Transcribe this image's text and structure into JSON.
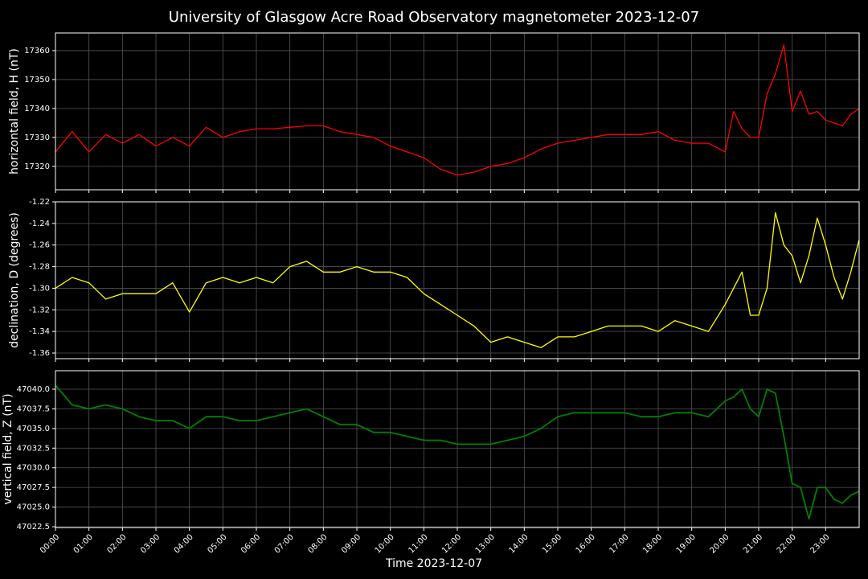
{
  "chart_data": [
    {
      "type": "line",
      "title": "University of Glasgow Acre Road Observatory magnetometer 2023-12-07",
      "ylabel": "horizontal field, H (nT)",
      "color": "#ff0000",
      "grid": true,
      "x": [
        0,
        0.5,
        1,
        1.5,
        2,
        2.5,
        3,
        3.5,
        4,
        4.5,
        5,
        5.5,
        6,
        6.5,
        7,
        7.5,
        8,
        8.5,
        9,
        9.5,
        10,
        10.5,
        11,
        11.5,
        12,
        12.5,
        13,
        13.5,
        14,
        14.5,
        15,
        15.5,
        16,
        16.5,
        17,
        17.5,
        18,
        18.5,
        19,
        19.5,
        20,
        20.25,
        20.5,
        20.75,
        21,
        21.25,
        21.5,
        21.75,
        22,
        22.25,
        22.5,
        22.75,
        23,
        23.25,
        23.5,
        23.75,
        24
      ],
      "values": [
        17325,
        17332,
        17325,
        17331,
        17328,
        17331,
        17327,
        17330,
        17327,
        17333.5,
        17330,
        17332,
        17333,
        17333,
        17333.5,
        17334,
        17334,
        17332,
        17331,
        17330,
        17327,
        17325,
        17323,
        17319,
        17317,
        17318,
        17320,
        17321,
        17323,
        17326,
        17328,
        17329,
        17330,
        17331,
        17331,
        17331,
        17332,
        17329,
        17328,
        17328,
        17325,
        17339,
        17333,
        17330,
        17330,
        17345,
        17352,
        17362,
        17339,
        17346,
        17338,
        17339,
        17336,
        17335,
        17334,
        17338,
        17340
      ],
      "xlim": [
        0,
        24
      ],
      "ylim": [
        17311.9,
        17366.1
      ],
      "yticks": [
        17320,
        17330,
        17340,
        17350,
        17360
      ]
    },
    {
      "type": "line",
      "ylabel": "declination, D (degrees)",
      "color": "#ffff00",
      "grid": true,
      "x": [
        0,
        0.5,
        1,
        1.5,
        2,
        2.5,
        3,
        3.5,
        4,
        4.5,
        5,
        5.5,
        6,
        6.5,
        7,
        7.5,
        8,
        8.5,
        9,
        9.5,
        10,
        10.5,
        11,
        11.5,
        12,
        12.5,
        13,
        13.5,
        14,
        14.5,
        15,
        15.5,
        16,
        16.5,
        17,
        17.5,
        18,
        18.5,
        19,
        19.5,
        20,
        20.25,
        20.5,
        20.75,
        21,
        21.25,
        21.5,
        21.75,
        22,
        22.25,
        22.5,
        22.75,
        23,
        23.25,
        23.5,
        23.75,
        24
      ],
      "values": [
        -1.3,
        -1.29,
        -1.295,
        -1.31,
        -1.305,
        -1.305,
        -1.305,
        -1.295,
        -1.322,
        -1.295,
        -1.29,
        -1.295,
        -1.29,
        -1.295,
        -1.28,
        -1.275,
        -1.285,
        -1.285,
        -1.28,
        -1.285,
        -1.285,
        -1.29,
        -1.305,
        -1.315,
        -1.325,
        -1.335,
        -1.35,
        -1.345,
        -1.35,
        -1.355,
        -1.345,
        -1.345,
        -1.34,
        -1.335,
        -1.335,
        -1.335,
        -1.34,
        -1.33,
        -1.335,
        -1.34,
        -1.315,
        -1.3,
        -1.285,
        -1.325,
        -1.325,
        -1.3,
        -1.23,
        -1.26,
        -1.27,
        -1.295,
        -1.27,
        -1.235,
        -1.26,
        -1.29,
        -1.31,
        -1.285,
        -1.255
      ],
      "xlim": [
        0,
        24
      ],
      "ylim": [
        -1.3652,
        -1.22
      ],
      "yticks": [
        -1.36,
        -1.34,
        -1.32,
        {
          "value": -1.3,
          "label": "-1.30"
        },
        -1.28,
        -1.26,
        -1.24,
        -1.22
      ]
    },
    {
      "type": "line",
      "ylabel": "vertical field, Z (nT)",
      "xlabel": "Time 2023-12-07",
      "color": "#008000",
      "grid": true,
      "x": [
        0,
        0.5,
        1,
        1.5,
        2,
        2.5,
        3,
        3.5,
        4,
        4.5,
        5,
        5.5,
        6,
        6.5,
        7,
        7.5,
        8,
        8.5,
        9,
        9.5,
        10,
        10.5,
        11,
        11.5,
        12,
        12.5,
        13,
        13.5,
        14,
        14.5,
        15,
        15.5,
        16,
        16.5,
        17,
        17.5,
        18,
        18.5,
        19,
        19.5,
        20,
        20.25,
        20.5,
        20.75,
        21,
        21.25,
        21.5,
        21.75,
        22,
        22.25,
        22.5,
        22.75,
        23,
        23.25,
        23.5,
        23.75,
        24
      ],
      "values": [
        47040.5,
        47038,
        47037.5,
        47038,
        47037.5,
        47036.5,
        47036,
        47036,
        47035,
        47036.5,
        47036.5,
        47036,
        47036,
        47036.5,
        47037,
        47037.5,
        47036.5,
        47035.5,
        47035.5,
        47034.5,
        47034.5,
        47034,
        47033.5,
        47033.5,
        47033,
        47033,
        47033,
        47033.5,
        47034,
        47035,
        47036.5,
        47037,
        47037,
        47037,
        47037,
        47036.5,
        47036.5,
        47037,
        47037,
        47036.5,
        47038.5,
        47039,
        47040,
        47037.5,
        47036.5,
        47040,
        47039.5,
        47034,
        47028,
        47027.5,
        47023.5,
        47027.5,
        47027.5,
        47026,
        47025.5,
        47026.5,
        47027
      ],
      "xlim": [
        0,
        24
      ],
      "ylim": [
        47022.4,
        47042.35
      ],
      "yticks": [
        47022.5,
        {
          "value": 47025,
          "label": "47025.0"
        },
        47027.5,
        {
          "value": 47030,
          "label": "47030.0"
        },
        47032.5,
        {
          "value": 47035,
          "label": "47035.0"
        },
        47037.5,
        {
          "value": 47040,
          "label": "47040.0"
        }
      ],
      "xticks": [
        {
          "value": 0,
          "label": "00:00"
        },
        {
          "value": 1,
          "label": "01:00"
        },
        {
          "value": 2,
          "label": "02:00"
        },
        {
          "value": 3,
          "label": "03:00"
        },
        {
          "value": 4,
          "label": "04:00"
        },
        {
          "value": 5,
          "label": "05:00"
        },
        {
          "value": 6,
          "label": "06:00"
        },
        {
          "value": 7,
          "label": "07:00"
        },
        {
          "value": 8,
          "label": "08:00"
        },
        {
          "value": 9,
          "label": "09:00"
        },
        {
          "value": 10,
          "label": "10:00"
        },
        {
          "value": 11,
          "label": "11:00"
        },
        {
          "value": 12,
          "label": "12:00"
        },
        {
          "value": 13,
          "label": "13:00"
        },
        {
          "value": 14,
          "label": "14:00"
        },
        {
          "value": 15,
          "label": "15:00"
        },
        {
          "value": 16,
          "label": "16:00"
        },
        {
          "value": 17,
          "label": "17:00"
        },
        {
          "value": 18,
          "label": "18:00"
        },
        {
          "value": 19,
          "label": "19:00"
        },
        {
          "value": 20,
          "label": "20:00"
        },
        {
          "value": 21,
          "label": "21:00"
        },
        {
          "value": 22,
          "label": "22:00"
        },
        {
          "value": 23,
          "label": "23:00"
        }
      ]
    }
  ]
}
